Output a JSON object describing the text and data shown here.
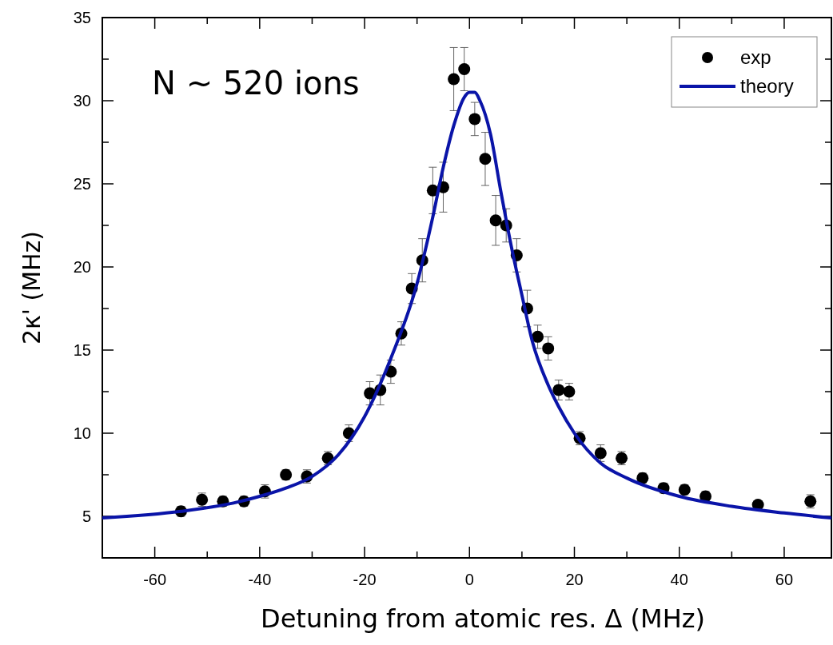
{
  "chart_data": {
    "type": "scatter",
    "xlabel": "Detuning from atomic res. Δ (MHz)",
    "ylabel": "2κ' (MHz)",
    "annotations": [
      "N ~ 520 ions"
    ],
    "xlim": [
      -70,
      69
    ],
    "ylim": [
      2.5,
      35
    ],
    "xticks": [
      -60,
      {
        "value": -50,
        "label": null
      },
      -40,
      {
        "value": -30,
        "label": null
      },
      -20,
      {
        "value": -10,
        "label": null
      },
      0,
      {
        "value": 10,
        "label": null
      },
      20,
      {
        "value": 30,
        "label": null
      },
      40,
      {
        "value": 50,
        "label": null
      },
      60
    ],
    "yticks": [
      5,
      {
        "value": 7.5,
        "label": null
      },
      10,
      {
        "value": 12.5,
        "label": null
      },
      15,
      {
        "value": 17.5,
        "label": null
      },
      20,
      {
        "value": 22.5,
        "label": null
      },
      25,
      {
        "value": 27.5,
        "label": null
      },
      30,
      {
        "value": 32.5,
        "label": null
      },
      35
    ],
    "legend": "top right",
    "grid": false,
    "series": [
      {
        "name": "exp",
        "type": "scatter",
        "color": "#000000",
        "marker": "circle",
        "x": [
          -55,
          -51,
          -47,
          -43,
          -39,
          -35,
          -31,
          -27,
          -23,
          -19,
          -17,
          -15,
          -13,
          -11,
          -9,
          -7,
          -5,
          -3,
          -1,
          1,
          3,
          5,
          7,
          9,
          11,
          13,
          15,
          17,
          19,
          21,
          25,
          29,
          33,
          37,
          41,
          45,
          55,
          65
        ],
        "values": [
          5.3,
          6.0,
          5.9,
          5.9,
          6.5,
          7.5,
          7.4,
          8.5,
          10.0,
          12.4,
          12.6,
          13.7,
          16.0,
          18.7,
          20.4,
          24.6,
          24.8,
          31.3,
          31.9,
          28.9,
          26.5,
          22.8,
          22.5,
          20.7,
          17.5,
          15.8,
          15.1,
          12.6,
          12.5,
          9.7,
          8.8,
          8.5,
          7.3,
          6.7,
          6.6,
          6.2,
          5.7,
          5.9
        ],
        "errors": [
          0.3,
          0.4,
          0.3,
          0.3,
          0.4,
          0.3,
          0.4,
          0.4,
          0.5,
          0.7,
          0.9,
          0.7,
          0.7,
          0.9,
          1.3,
          1.4,
          1.5,
          1.9,
          1.3,
          1.0,
          1.6,
          1.5,
          1.0,
          1.0,
          1.1,
          0.7,
          0.7,
          0.6,
          0.5,
          0.4,
          0.5,
          0.4,
          0.3,
          0.3,
          0.3,
          0.3,
          0.2,
          0.4
        ]
      },
      {
        "name": "theory",
        "type": "line",
        "color": "#0a14a8",
        "line_style": "solid",
        "x": [
          -70,
          -55,
          -45,
          -40,
          -35,
          -30,
          -25,
          -20,
          -15,
          -10,
          -7,
          -5,
          -3,
          -1,
          0,
          1,
          2,
          4,
          6,
          8,
          10,
          12,
          15,
          17,
          20,
          25,
          30,
          40,
          50,
          60,
          69
        ],
        "values": [
          4.9,
          5.3,
          5.8,
          6.2,
          6.7,
          7.4,
          8.7,
          11.0,
          14.5,
          19.0,
          23.0,
          26.0,
          28.5,
          30.2,
          30.5,
          30.5,
          30.0,
          28.0,
          24.5,
          21.2,
          18.3,
          15.5,
          12.9,
          11.6,
          10.0,
          8.2,
          7.3,
          6.2,
          5.6,
          5.2,
          4.9
        ]
      }
    ]
  }
}
